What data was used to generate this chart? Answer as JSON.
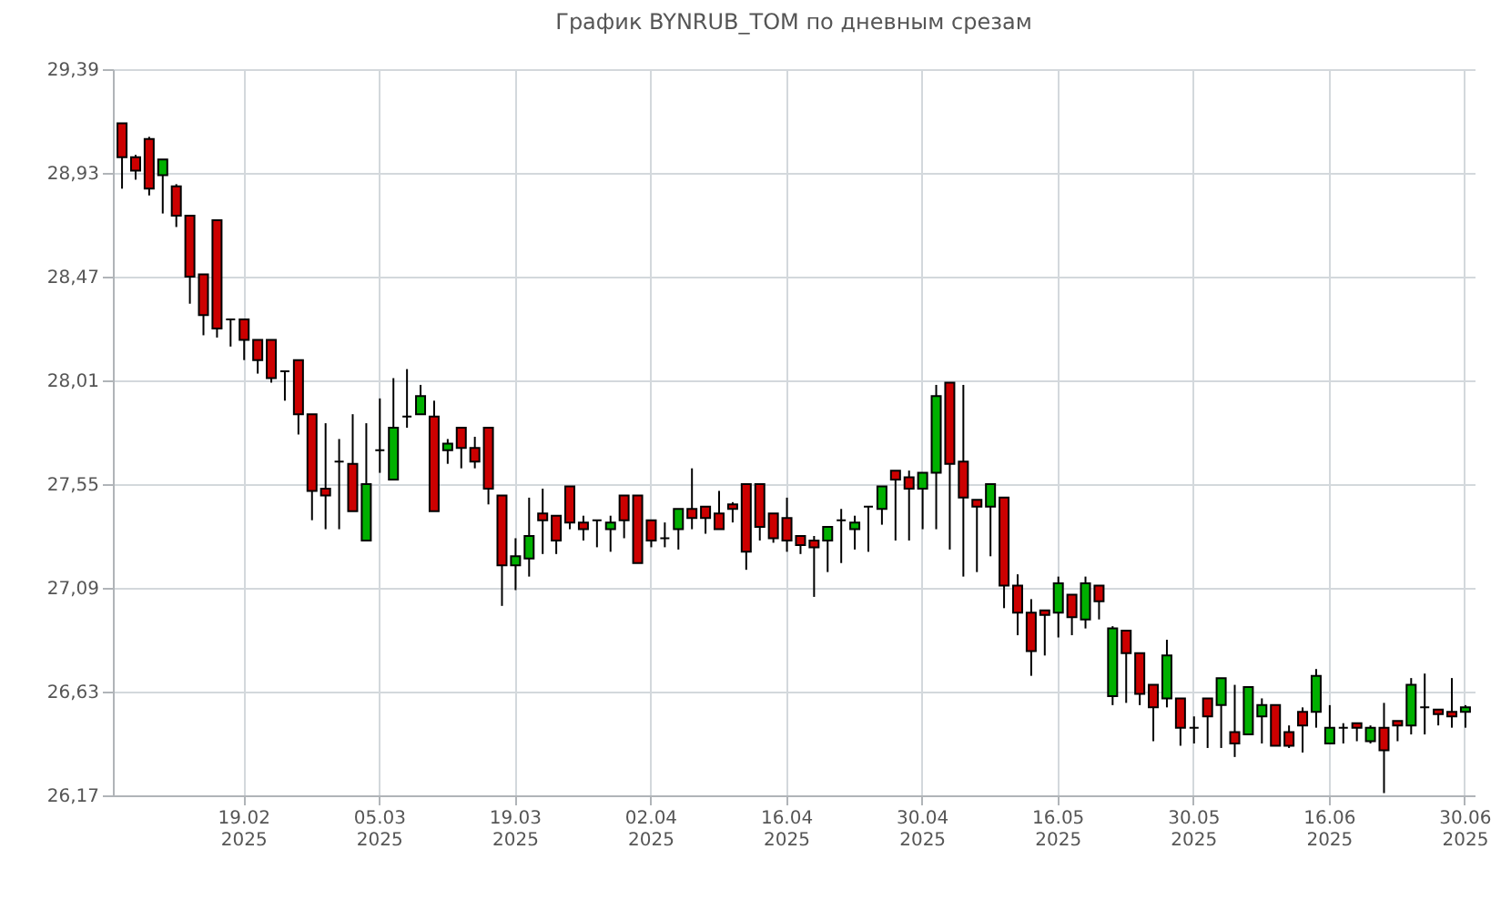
{
  "chart_data": {
    "type": "candlestick",
    "title": "График BYNRUB_TOM по дневным срезам",
    "categories": [
      null,
      null,
      null,
      null,
      null,
      null,
      null,
      null,
      null,
      "19.02\n2025",
      null,
      null,
      null,
      null,
      null,
      null,
      null,
      null,
      null,
      "05.03\n2025",
      null,
      null,
      null,
      null,
      null,
      null,
      null,
      null,
      null,
      "19.03\n2025",
      null,
      null,
      null,
      null,
      null,
      null,
      null,
      null,
      null,
      "02.04\n2025",
      null,
      null,
      null,
      null,
      null,
      null,
      null,
      null,
      null,
      "16.04\n2025",
      null,
      null,
      null,
      null,
      null,
      null,
      null,
      null,
      null,
      "30.04\n2025",
      null,
      null,
      null,
      null,
      null,
      null,
      null,
      null,
      null,
      "16.05\n2025",
      null,
      null,
      null,
      null,
      null,
      null,
      null,
      null,
      null,
      "30.05\n2025",
      null,
      null,
      null,
      null,
      null,
      null,
      null,
      null,
      null,
      "16.06\n2025",
      null,
      null,
      null,
      null,
      null,
      null,
      null,
      null,
      null,
      "30.06\n2025"
    ],
    "ohlc": [
      [
        29.15,
        29.15,
        28.86,
        29.0
      ],
      [
        29.0,
        29.01,
        28.9,
        28.94
      ],
      [
        29.08,
        29.09,
        28.83,
        28.86
      ],
      [
        28.92,
        28.99,
        28.75,
        28.99
      ],
      [
        28.87,
        28.88,
        28.69,
        28.74
      ],
      [
        28.74,
        28.74,
        28.35,
        28.47
      ],
      [
        28.48,
        28.48,
        28.21,
        28.3
      ],
      [
        28.72,
        28.72,
        28.2,
        28.24
      ],
      [
        28.28,
        28.28,
        28.16,
        28.28
      ],
      [
        28.28,
        28.28,
        28.1,
        28.19
      ],
      [
        28.19,
        28.19,
        28.04,
        28.1
      ],
      [
        28.19,
        28.19,
        28.0,
        28.02
      ],
      [
        28.05,
        28.05,
        27.92,
        28.05
      ],
      [
        28.1,
        28.1,
        27.77,
        27.86
      ],
      [
        27.86,
        27.86,
        27.39,
        27.52
      ],
      [
        27.53,
        27.82,
        27.35,
        27.5
      ],
      [
        27.65,
        27.75,
        27.35,
        27.65
      ],
      [
        27.64,
        27.86,
        27.43,
        27.43
      ],
      [
        27.3,
        27.82,
        27.3,
        27.55
      ],
      [
        27.7,
        27.93,
        27.6,
        27.7
      ],
      [
        27.57,
        28.02,
        27.57,
        27.8
      ],
      [
        27.85,
        28.06,
        27.8,
        27.85
      ],
      [
        27.86,
        27.99,
        27.86,
        27.94
      ],
      [
        27.85,
        27.92,
        27.43,
        27.43
      ],
      [
        27.7,
        27.75,
        27.64,
        27.73
      ],
      [
        27.8,
        27.8,
        27.62,
        27.71
      ],
      [
        27.71,
        27.76,
        27.62,
        27.65
      ],
      [
        27.8,
        27.8,
        27.46,
        27.53
      ],
      [
        27.5,
        27.5,
        27.01,
        27.19
      ],
      [
        27.19,
        27.31,
        27.08,
        27.23
      ],
      [
        27.22,
        27.49,
        27.14,
        27.32
      ],
      [
        27.42,
        27.53,
        27.24,
        27.39
      ],
      [
        27.41,
        27.41,
        27.24,
        27.3
      ],
      [
        27.54,
        27.54,
        27.35,
        27.38
      ],
      [
        27.38,
        27.41,
        27.3,
        27.35
      ],
      [
        27.39,
        27.39,
        27.27,
        27.39
      ],
      [
        27.35,
        27.41,
        27.25,
        27.38
      ],
      [
        27.5,
        27.5,
        27.31,
        27.39
      ],
      [
        27.5,
        27.5,
        27.2,
        27.2
      ],
      [
        27.39,
        27.39,
        27.27,
        27.3
      ],
      [
        27.31,
        27.38,
        27.27,
        27.31
      ],
      [
        27.35,
        27.44,
        27.26,
        27.44
      ],
      [
        27.44,
        27.62,
        27.35,
        27.4
      ],
      [
        27.45,
        27.45,
        27.33,
        27.4
      ],
      [
        27.42,
        27.52,
        27.35,
        27.35
      ],
      [
        27.46,
        27.47,
        27.38,
        27.44
      ],
      [
        27.55,
        27.55,
        27.17,
        27.25
      ],
      [
        27.55,
        27.55,
        27.3,
        27.36
      ],
      [
        27.42,
        27.42,
        27.29,
        27.31
      ],
      [
        27.4,
        27.49,
        27.25,
        27.3
      ],
      [
        27.32,
        27.32,
        27.24,
        27.28
      ],
      [
        27.3,
        27.32,
        27.05,
        27.27
      ],
      [
        27.3,
        27.36,
        27.16,
        27.36
      ],
      [
        27.39,
        27.44,
        27.2,
        27.39
      ],
      [
        27.35,
        27.41,
        27.26,
        27.38
      ],
      [
        27.45,
        27.45,
        27.25,
        27.45
      ],
      [
        27.44,
        27.54,
        27.37,
        27.54
      ],
      [
        27.61,
        27.61,
        27.3,
        27.57
      ],
      [
        27.58,
        27.61,
        27.3,
        27.53
      ],
      [
        27.53,
        27.6,
        27.35,
        27.6
      ],
      [
        27.6,
        27.99,
        27.35,
        27.94
      ],
      [
        28.0,
        28.0,
        27.26,
        27.64
      ],
      [
        27.65,
        27.99,
        27.14,
        27.49
      ],
      [
        27.48,
        27.48,
        27.16,
        27.45
      ],
      [
        27.45,
        27.55,
        27.23,
        27.55
      ],
      [
        27.49,
        27.49,
        27.0,
        27.1
      ],
      [
        27.1,
        27.15,
        26.88,
        26.98
      ],
      [
        26.98,
        27.04,
        26.7,
        26.81
      ],
      [
        26.99,
        26.99,
        26.79,
        26.97
      ],
      [
        26.98,
        27.14,
        26.87,
        27.11
      ],
      [
        27.06,
        27.06,
        26.88,
        26.96
      ],
      [
        26.95,
        27.14,
        26.91,
        27.11
      ],
      [
        27.1,
        27.1,
        26.95,
        27.03
      ],
      [
        26.61,
        26.92,
        26.57,
        26.91
      ],
      [
        26.9,
        26.9,
        26.58,
        26.8
      ],
      [
        26.8,
        26.8,
        26.57,
        26.62
      ],
      [
        26.66,
        26.66,
        26.41,
        26.56
      ],
      [
        26.6,
        26.86,
        26.56,
        26.79
      ],
      [
        26.6,
        26.6,
        26.39,
        26.47
      ],
      [
        26.47,
        26.52,
        26.4,
        26.47
      ],
      [
        26.6,
        26.6,
        26.38,
        26.52
      ],
      [
        26.57,
        26.69,
        26.38,
        26.69
      ],
      [
        26.45,
        26.66,
        26.34,
        26.4
      ],
      [
        26.44,
        26.65,
        26.44,
        26.65
      ],
      [
        26.52,
        26.6,
        26.4,
        26.57
      ],
      [
        26.57,
        26.57,
        26.39,
        26.39
      ],
      [
        26.45,
        26.48,
        26.38,
        26.39
      ],
      [
        26.54,
        26.56,
        26.36,
        26.48
      ],
      [
        26.54,
        26.73,
        26.47,
        26.7
      ],
      [
        26.4,
        26.57,
        26.4,
        26.47
      ],
      [
        26.47,
        26.49,
        26.4,
        26.47
      ],
      [
        26.49,
        26.49,
        26.41,
        26.47
      ],
      [
        26.41,
        26.48,
        26.4,
        26.47
      ],
      [
        26.47,
        26.58,
        26.18,
        26.37
      ],
      [
        26.5,
        26.5,
        26.41,
        26.48
      ],
      [
        26.48,
        26.69,
        26.44,
        26.66
      ],
      [
        26.56,
        26.71,
        26.44,
        26.56
      ],
      [
        26.55,
        26.55,
        26.48,
        26.53
      ],
      [
        26.54,
        26.69,
        26.47,
        26.52
      ],
      [
        26.54,
        26.57,
        26.47,
        26.56
      ]
    ],
    "colors": [
      "#cc0000",
      "#cc0000",
      "#cc0000",
      "#00b000",
      "#cc0000",
      "#cc0000",
      "#cc0000",
      "#cc0000",
      "#000000",
      "#cc0000",
      "#cc0000",
      "#cc0000",
      "#000000",
      "#cc0000",
      "#cc0000",
      "#cc0000",
      "#000000",
      "#cc0000",
      "#00b000",
      "#000000",
      "#00b000",
      "#000000",
      "#00b000",
      "#cc0000",
      "#00b000",
      "#cc0000",
      "#cc0000",
      "#cc0000",
      "#cc0000",
      "#00b000",
      "#00b000",
      "#cc0000",
      "#cc0000",
      "#cc0000",
      "#cc0000",
      "#000000",
      "#00b000",
      "#cc0000",
      "#cc0000",
      "#cc0000",
      "#000000",
      "#00b000",
      "#cc0000",
      "#cc0000",
      "#cc0000",
      "#cc0000",
      "#cc0000",
      "#cc0000",
      "#cc0000",
      "#cc0000",
      "#cc0000",
      "#cc0000",
      "#00b000",
      "#000000",
      "#00b000",
      "#000000",
      "#00b000",
      "#cc0000",
      "#cc0000",
      "#00b000",
      "#00b000",
      "#cc0000",
      "#cc0000",
      "#cc0000",
      "#00b000",
      "#cc0000",
      "#cc0000",
      "#cc0000",
      "#cc0000",
      "#00b000",
      "#cc0000",
      "#00b000",
      "#cc0000",
      "#00b000",
      "#cc0000",
      "#cc0000",
      "#cc0000",
      "#00b000",
      "#cc0000",
      "#000000",
      "#cc0000",
      "#00b000",
      "#cc0000",
      "#00b000",
      "#00b000",
      "#cc0000",
      "#cc0000",
      "#cc0000",
      "#00b000",
      "#00b000",
      "#000000",
      "#cc0000",
      "#00b000",
      "#cc0000",
      "#cc0000",
      "#00b000",
      "#000000",
      "#cc0000",
      "#cc0000",
      "#00b000"
    ],
    "ylim": [
      26.17,
      29.39
    ],
    "yticks": [
      {
        "value": 26.17,
        "label": "26,17"
      },
      {
        "value": 26.63,
        "label": "26,63"
      },
      {
        "value": 27.09,
        "label": "27,09"
      },
      {
        "value": 27.55,
        "label": "27,55"
      },
      {
        "value": 28.01,
        "label": "28,01"
      },
      {
        "value": 28.47,
        "label": "28,47"
      },
      {
        "value": 28.93,
        "label": "28,93"
      },
      {
        "value": 29.39,
        "label": "29,39"
      }
    ],
    "grid": true
  }
}
